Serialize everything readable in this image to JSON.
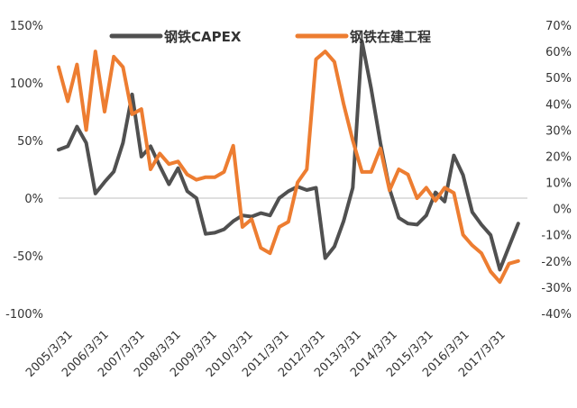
{
  "chart_data": {
    "type": "line",
    "title": "",
    "x_tick_labels": [
      "2005/3/31",
      "2006/3/31",
      "2007/3/31",
      "2008/3/31",
      "2009/3/31",
      "2010/3/31",
      "2011/3/31",
      "2012/3/31",
      "2013/3/31",
      "2014/3/31",
      "2015/3/31",
      "2016/3/31",
      "2017/3/31"
    ],
    "y_left": {
      "ticks": [
        "150%",
        "100%",
        "50%",
        "0%",
        "-50%",
        "-100%"
      ],
      "tick_values": [
        150,
        100,
        50,
        0,
        -50,
        -100
      ],
      "ylim": [
        -100,
        150
      ]
    },
    "y_right": {
      "ticks": [
        "70%",
        "60%",
        "50%",
        "40%",
        "30%",
        "20%",
        "10%",
        "0%",
        "-10%",
        "-20%",
        "-30%",
        "-40%"
      ],
      "tick_values": [
        70,
        60,
        50,
        40,
        30,
        20,
        10,
        0,
        -10,
        -20,
        -30,
        -40
      ],
      "ylim": [
        -40,
        70
      ]
    },
    "x_range": [
      0,
      51
    ],
    "series": [
      {
        "name": "钢铁CAPEX",
        "axis": "left",
        "color": "#505050",
        "x": [
          0,
          1,
          2,
          3,
          4,
          5,
          6,
          7,
          8,
          9,
          10,
          11,
          12,
          13,
          14,
          15,
          16,
          17,
          18,
          19,
          20,
          21,
          22,
          23,
          24,
          25,
          26,
          27,
          28,
          29,
          30,
          31,
          32,
          33,
          34,
          35,
          36,
          37,
          38,
          39,
          40,
          41,
          42,
          43,
          44,
          45,
          46,
          47,
          48,
          49,
          50
        ],
        "values": [
          42,
          45,
          62,
          48,
          4,
          14,
          23,
          48,
          90,
          36,
          45,
          28,
          12,
          26,
          6,
          0,
          -31,
          -30,
          -27,
          -20,
          -15,
          -16,
          -13,
          -15,
          0,
          6,
          10,
          7,
          9,
          -52,
          -42,
          -20,
          9,
          136,
          95,
          48,
          8,
          -17,
          -22,
          -23,
          -15,
          5,
          -3,
          37,
          20,
          -12,
          -23,
          -32,
          -62,
          -42,
          -22
        ]
      },
      {
        "name": "钢铁在建工程",
        "axis": "right",
        "color": "#ed7d31",
        "x": [
          0,
          1,
          2,
          3,
          4,
          5,
          6,
          7,
          8,
          9,
          10,
          11,
          12,
          13,
          14,
          15,
          16,
          17,
          18,
          19,
          20,
          21,
          22,
          23,
          24,
          25,
          26,
          27,
          28,
          29,
          30,
          31,
          32,
          33,
          34,
          35,
          36,
          37,
          38,
          39,
          40,
          41,
          42,
          43,
          44,
          45,
          46,
          47,
          48,
          49,
          50
        ],
        "values": [
          54,
          41,
          55,
          30,
          60,
          37,
          58,
          54,
          36,
          38,
          15,
          21,
          17,
          18,
          13,
          11,
          12,
          12,
          14,
          24,
          -7,
          -4,
          -15,
          -17,
          -7,
          -5,
          10,
          15,
          57,
          60,
          56,
          40,
          26,
          14,
          14,
          23,
          7,
          15,
          13,
          4,
          8,
          3,
          8,
          6,
          -10,
          -14,
          -17,
          -24,
          -28,
          -21,
          -20
        ]
      }
    ]
  }
}
